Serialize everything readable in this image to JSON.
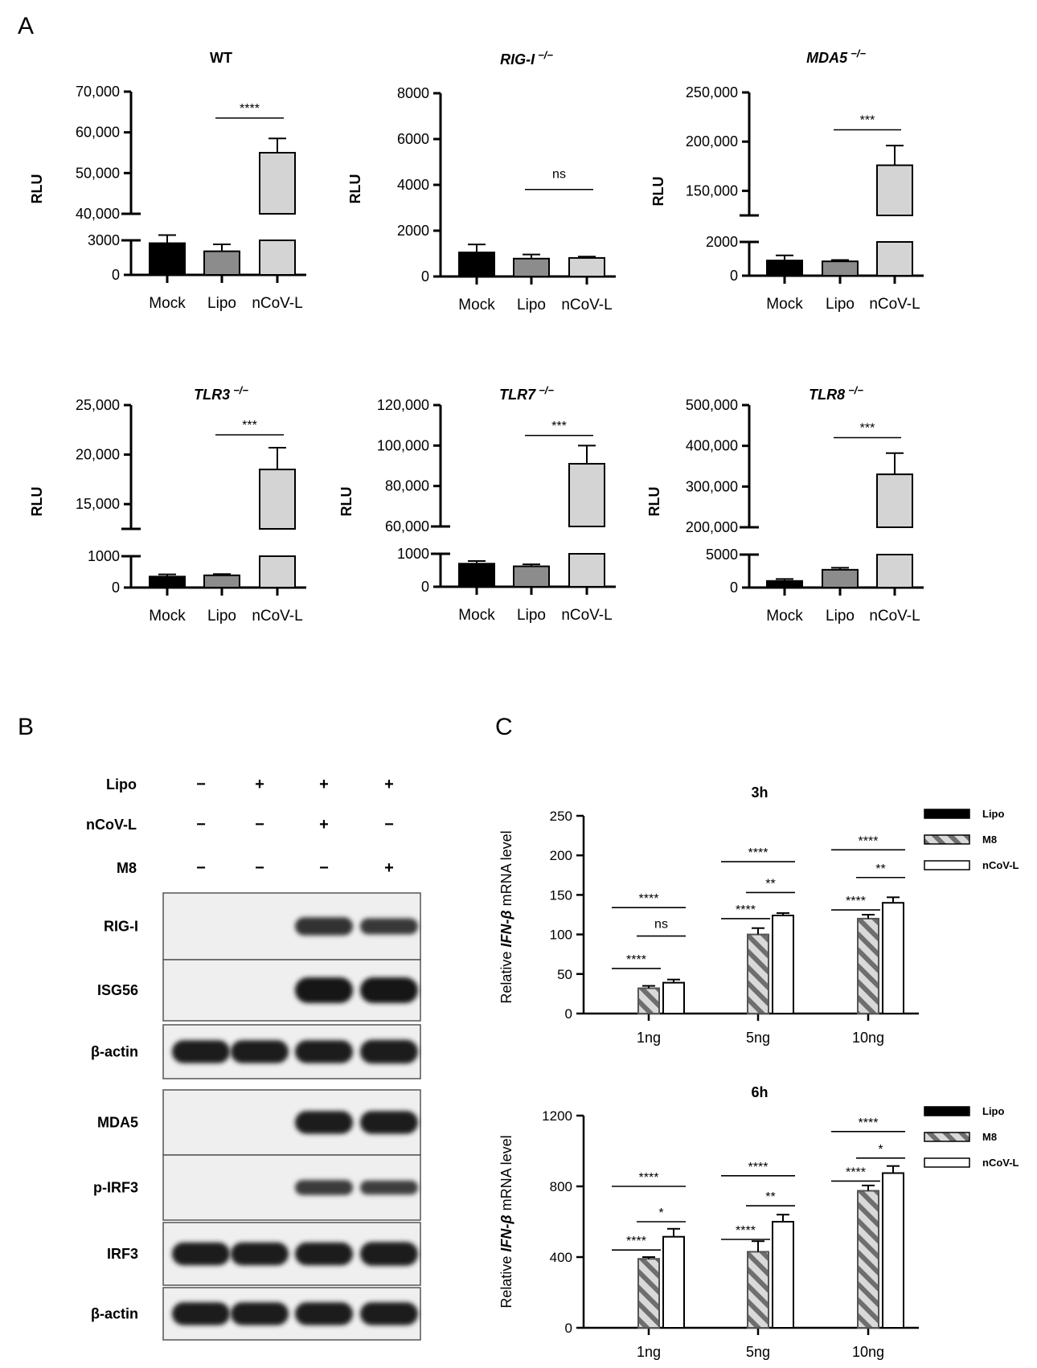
{
  "panels": {
    "A": "A",
    "B": "B",
    "C": "C"
  },
  "panel_a": {
    "ylabel": "RLU",
    "categories": [
      "Mock",
      "Lipo",
      "nCoV-L"
    ]
  },
  "chart_data": [
    {
      "type": "bar",
      "id": "wt",
      "title": "WT",
      "title_sup": "",
      "title_italic": false,
      "categories": [
        "Mock",
        "Lipo",
        "nCoV-L"
      ],
      "values": [
        2750,
        2050,
        55000
      ],
      "errors": [
        700,
        600,
        3500
      ],
      "colors": [
        "#000000",
        "#8c8c8c",
        "#d4d4d4"
      ],
      "ylabel": "RLU",
      "broken_axis": true,
      "lower_ylim": [
        0,
        3000
      ],
      "lower_ticks": [
        0,
        3000
      ],
      "lower_tick_labels": [
        "0",
        "3000"
      ],
      "upper_ylim": [
        40000,
        70000
      ],
      "upper_ticks": [
        40000,
        50000,
        60000,
        70000
      ],
      "upper_tick_labels": [
        "40,000",
        "50,000",
        "60,000",
        "70,000"
      ],
      "significance": [
        {
          "label": "****",
          "from": 1,
          "to": 2,
          "y": 63500
        }
      ]
    },
    {
      "type": "bar",
      "id": "rigi",
      "title": "RIG-I",
      "title_sup": "−/−",
      "title_italic": true,
      "categories": [
        "Mock",
        "Lipo",
        "nCoV-L"
      ],
      "values": [
        1050,
        780,
        810
      ],
      "errors": [
        350,
        180,
        60
      ],
      "colors": [
        "#000000",
        "#8c8c8c",
        "#d4d4d4"
      ],
      "ylabel": "RLU",
      "broken_axis": false,
      "ylim": [
        0,
        8000
      ],
      "ticks": [
        0,
        2000,
        4000,
        6000,
        8000
      ],
      "tick_labels": [
        "0",
        "2000",
        "4000",
        "6000",
        "8000"
      ],
      "significance": [
        {
          "label": "ns",
          "from": 1,
          "to": 2,
          "y": 3800
        }
      ]
    },
    {
      "type": "bar",
      "id": "mda5",
      "title": "MDA5",
      "title_sup": "−/−",
      "title_italic": true,
      "categories": [
        "Mock",
        "Lipo",
        "nCoV-L"
      ],
      "values": [
        900,
        850,
        176000
      ],
      "errors": [
        300,
        80,
        20000
      ],
      "colors": [
        "#000000",
        "#8c8c8c",
        "#d4d4d4"
      ],
      "ylabel": "RLU",
      "broken_axis": true,
      "lower_ylim": [
        0,
        2000
      ],
      "lower_ticks": [
        0,
        2000
      ],
      "lower_tick_labels": [
        "0",
        "2000"
      ],
      "upper_ylim": [
        125000,
        250000
      ],
      "upper_ticks": [
        150000,
        200000,
        250000
      ],
      "upper_tick_labels": [
        "150,000",
        "200,000",
        "250,000"
      ],
      "significance": [
        {
          "label": "***",
          "from": 1,
          "to": 2,
          "y": 212000
        }
      ]
    },
    {
      "type": "bar",
      "id": "tlr3",
      "title": "TLR3",
      "title_sup": "−/−",
      "title_italic": true,
      "categories": [
        "Mock",
        "Lipo",
        "nCoV-L"
      ],
      "values": [
        350,
        390,
        18500
      ],
      "errors": [
        70,
        40,
        2200
      ],
      "colors": [
        "#000000",
        "#8c8c8c",
        "#d4d4d4"
      ],
      "ylabel": "RLU",
      "broken_axis": true,
      "lower_ylim": [
        0,
        1000
      ],
      "lower_ticks": [
        0,
        1000
      ],
      "lower_tick_labels": [
        "0",
        "1000"
      ],
      "upper_ylim": [
        12500,
        25000
      ],
      "upper_ticks": [
        15000,
        20000,
        25000
      ],
      "upper_tick_labels": [
        "15,000",
        "20,000",
        "25,000"
      ],
      "significance": [
        {
          "label": "***",
          "from": 1,
          "to": 2,
          "y": 22000
        }
      ]
    },
    {
      "type": "bar",
      "id": "tlr7",
      "title": "TLR7",
      "title_sup": "−/−",
      "title_italic": true,
      "categories": [
        "Mock",
        "Lipo",
        "nCoV-L"
      ],
      "values": [
        700,
        620,
        91000
      ],
      "errors": [
        80,
        60,
        9000
      ],
      "colors": [
        "#000000",
        "#8c8c8c",
        "#d4d4d4"
      ],
      "ylabel": "RLU",
      "broken_axis": true,
      "lower_ylim": [
        0,
        1000
      ],
      "lower_ticks": [
        0,
        1000
      ],
      "lower_tick_labels": [
        "0",
        "1000"
      ],
      "upper_ylim": [
        60000,
        120000
      ],
      "upper_ticks": [
        60000,
        80000,
        100000,
        120000
      ],
      "upper_tick_labels": [
        "60,000",
        "80,000",
        "100,000",
        "120,000"
      ],
      "significance": [
        {
          "label": "***",
          "from": 1,
          "to": 2,
          "y": 105000
        }
      ]
    },
    {
      "type": "bar",
      "id": "tlr8",
      "title": "TLR8",
      "title_sup": "−/−",
      "title_italic": true,
      "categories": [
        "Mock",
        "Lipo",
        "nCoV-L"
      ],
      "values": [
        1000,
        2700,
        330000
      ],
      "errors": [
        300,
        300,
        52000
      ],
      "colors": [
        "#000000",
        "#8c8c8c",
        "#d4d4d4"
      ],
      "ylabel": "RLU",
      "broken_axis": true,
      "lower_ylim": [
        0,
        5000
      ],
      "lower_ticks": [
        0,
        5000
      ],
      "lower_tick_labels": [
        "0",
        "5000"
      ],
      "upper_ylim": [
        200000,
        500000
      ],
      "upper_ticks": [
        200000,
        300000,
        400000,
        500000
      ],
      "upper_tick_labels": [
        "200,000",
        "300,000",
        "400,000",
        "500,000"
      ],
      "significance": [
        {
          "label": "***",
          "from": 1,
          "to": 2,
          "y": 420000
        }
      ]
    },
    {
      "type": "bar",
      "id": "c3h",
      "title": "3h",
      "ylabel_pre": "Relative ",
      "ylabel_gene": "IFN-β",
      "ylabel_post": " mRNA level",
      "categories": [
        "1ng",
        "5ng",
        "10ng"
      ],
      "series": [
        {
          "name": "Lipo",
          "values": [
            0,
            0,
            0
          ],
          "errors": [
            0,
            0,
            0
          ]
        },
        {
          "name": "M8",
          "values": [
            32,
            100,
            120
          ],
          "errors": [
            3,
            8,
            5
          ]
        },
        {
          "name": "nCoV-L",
          "values": [
            39,
            124,
            140
          ],
          "errors": [
            4,
            3,
            7
          ]
        }
      ],
      "ylim": [
        0,
        250
      ],
      "ticks": [
        0,
        50,
        100,
        150,
        200,
        250
      ],
      "tick_labels": [
        "0",
        "50",
        "100",
        "150",
        "200",
        "250"
      ],
      "significance": [
        {
          "label": "****",
          "group": 0,
          "from": 0,
          "to": 1,
          "y": 57
        },
        {
          "label": "ns",
          "group": 0,
          "from": 1,
          "to": 2,
          "y": 98
        },
        {
          "label": "****",
          "group": 0,
          "from": 0,
          "to": 2,
          "y": 134
        },
        {
          "label": "****",
          "group": 1,
          "from": 0,
          "to": 1,
          "y": 120
        },
        {
          "label": "**",
          "group": 1,
          "from": 1,
          "to": 2,
          "y": 153
        },
        {
          "label": "****",
          "group": 1,
          "from": 0,
          "to": 2,
          "y": 192
        },
        {
          "label": "****",
          "group": 2,
          "from": 0,
          "to": 1,
          "y": 131
        },
        {
          "label": "**",
          "group": 2,
          "from": 1,
          "to": 2,
          "y": 172
        },
        {
          "label": "****",
          "group": 2,
          "from": 0,
          "to": 2,
          "y": 207
        }
      ]
    },
    {
      "type": "bar",
      "id": "c6h",
      "title": "6h",
      "ylabel_pre": "Relative ",
      "ylabel_gene": "IFN-β",
      "ylabel_post": " mRNA level",
      "categories": [
        "1ng",
        "5ng",
        "10ng"
      ],
      "series": [
        {
          "name": "Lipo",
          "values": [
            0,
            0,
            0
          ],
          "errors": [
            0,
            0,
            0
          ]
        },
        {
          "name": "M8",
          "values": [
            390,
            430,
            775
          ],
          "errors": [
            10,
            60,
            30
          ]
        },
        {
          "name": "nCoV-L",
          "values": [
            515,
            600,
            875
          ],
          "errors": [
            45,
            40,
            40
          ]
        }
      ],
      "ylim": [
        0,
        1200
      ],
      "ticks": [
        0,
        400,
        800,
        1200
      ],
      "tick_labels": [
        "0",
        "400",
        "800",
        "1200"
      ],
      "significance": [
        {
          "label": "****",
          "group": 0,
          "from": 0,
          "to": 1,
          "y": 440
        },
        {
          "label": "*",
          "group": 0,
          "from": 1,
          "to": 2,
          "y": 600
        },
        {
          "label": "****",
          "group": 0,
          "from": 0,
          "to": 2,
          "y": 800
        },
        {
          "label": "****",
          "group": 1,
          "from": 0,
          "to": 1,
          "y": 500
        },
        {
          "label": "**",
          "group": 1,
          "from": 1,
          "to": 2,
          "y": 690
        },
        {
          "label": "****",
          "group": 1,
          "from": 0,
          "to": 2,
          "y": 860
        },
        {
          "label": "****",
          "group": 2,
          "from": 0,
          "to": 1,
          "y": 830
        },
        {
          "label": "*",
          "group": 2,
          "from": 1,
          "to": 2,
          "y": 960
        },
        {
          "label": "****",
          "group": 2,
          "from": 0,
          "to": 2,
          "y": 1110
        }
      ]
    }
  ],
  "western_blot": {
    "treatments": [
      {
        "label": "Lipo",
        "signs": [
          "−",
          "+",
          "+",
          "+"
        ]
      },
      {
        "label": "nCoV-L",
        "signs": [
          "−",
          "−",
          "+",
          "−"
        ]
      },
      {
        "label": "M8",
        "signs": [
          "−",
          "−",
          "−",
          "+"
        ]
      }
    ],
    "blots": [
      {
        "label": "RIG-I",
        "bands": [
          0,
          0,
          0.6,
          0.5
        ]
      },
      {
        "label": "ISG56",
        "bands": [
          0,
          0,
          1,
          1
        ]
      },
      {
        "label": "β-actin",
        "bands": [
          0.85,
          0.85,
          0.85,
          0.9
        ]
      },
      {
        "label": "MDA5",
        "bands": [
          0,
          0,
          0.85,
          0.85
        ]
      },
      {
        "label": "p-IRF3",
        "bands": [
          0,
          0,
          0.45,
          0.4
        ]
      },
      {
        "label": "IRF3",
        "bands": [
          0.85,
          0.85,
          0.85,
          0.9
        ]
      },
      {
        "label": "β-actin",
        "bands": [
          0.85,
          0.85,
          0.85,
          0.85
        ]
      }
    ]
  }
}
